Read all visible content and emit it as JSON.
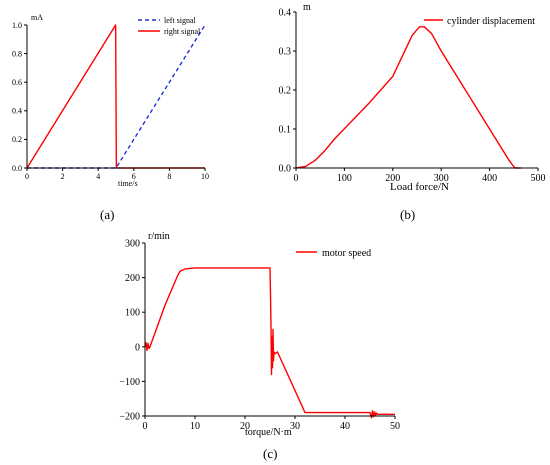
{
  "chart_data": [
    {
      "id": "a",
      "type": "line",
      "caption": "(a)",
      "ylabel": "mA",
      "xlabel": "time/s",
      "xlim": [
        0,
        10
      ],
      "ylim": [
        0,
        1.0
      ],
      "xticks": [
        0,
        2,
        4,
        6,
        8,
        10
      ],
      "yticks": [
        0.0,
        0.2,
        0.4,
        0.6,
        0.8,
        1.0
      ],
      "ytick_labels": [
        "0.0",
        "0.2",
        "0.4",
        "0.6",
        "0.8",
        "1.0"
      ],
      "legend_position": "top-right",
      "series": [
        {
          "name": "left signal",
          "color": "#2233dd",
          "dash": "dashed",
          "x": [
            0,
            5.0,
            5.0,
            10
          ],
          "y": [
            0,
            0,
            0,
            1.0
          ]
        },
        {
          "name": "right signal",
          "color": "#ff0000",
          "dash": "solid",
          "x": [
            0,
            4.98,
            5.02,
            5.05,
            10
          ],
          "y": [
            0,
            1.0,
            0.0,
            0.0,
            0.0
          ]
        }
      ]
    },
    {
      "id": "b",
      "type": "line",
      "caption": "(b)",
      "ylabel": "m",
      "xlabel": "Load force/N",
      "xlim": [
        0,
        500
      ],
      "ylim": [
        0,
        0.4
      ],
      "xticks": [
        0,
        100,
        200,
        300,
        400,
        500
      ],
      "yticks": [
        0.0,
        0.1,
        0.2,
        0.3,
        0.4
      ],
      "ytick_labels": [
        "0.0",
        "0.1",
        "0.2",
        "0.3",
        "0.4"
      ],
      "legend_position": "top-right",
      "series": [
        {
          "name": "cylinder displacement",
          "color": "#ff0000",
          "dash": "solid",
          "x": [
            0,
            20,
            40,
            60,
            80,
            150,
            200,
            240,
            255,
            265,
            280,
            300,
            350,
            400,
            440,
            452,
            465
          ],
          "y": [
            0,
            0.004,
            0.02,
            0.045,
            0.075,
            0.165,
            0.235,
            0.34,
            0.362,
            0.362,
            0.345,
            0.3,
            0.2,
            0.1,
            0.02,
            0.0,
            0.0
          ]
        }
      ]
    },
    {
      "id": "c",
      "type": "line",
      "caption": "(c)",
      "ylabel": "r/min",
      "xlabel": "torque/N·m",
      "xlim": [
        0,
        50
      ],
      "ylim": [
        -200,
        300
      ],
      "xticks": [
        0,
        10,
        20,
        30,
        40,
        50
      ],
      "yticks": [
        -200,
        -100,
        0,
        100,
        200,
        300
      ],
      "ytick_labels": [
        "−200",
        "−100",
        "0",
        "100",
        "200",
        "300"
      ],
      "legend_position": "top-right",
      "series": [
        {
          "name": "motor speed",
          "color": "#ff0000",
          "dash": "solid",
          "x": [
            0,
            0.2,
            0.4,
            0.6,
            0.8,
            1.0,
            4.0,
            6.5,
            7.0,
            8.0,
            10.0,
            25.0,
            25.1,
            25.2,
            25.3,
            25.4,
            25.5,
            25.6,
            25.7,
            25.8,
            26.0,
            26.5,
            32.0,
            45.0,
            45.3,
            45.5,
            45.7,
            45.9,
            46.1,
            46.3,
            46.6,
            50.0
          ],
          "y": [
            0,
            12,
            -10,
            10,
            -5,
            0,
            120,
            205,
            218,
            225,
            228,
            228,
            150,
            60,
            -80,
            30,
            -60,
            50,
            -40,
            -15,
            -20,
            -15,
            -190,
            -190,
            -205,
            -185,
            -202,
            -188,
            -198,
            -192,
            -195,
            -195
          ]
        }
      ]
    }
  ]
}
